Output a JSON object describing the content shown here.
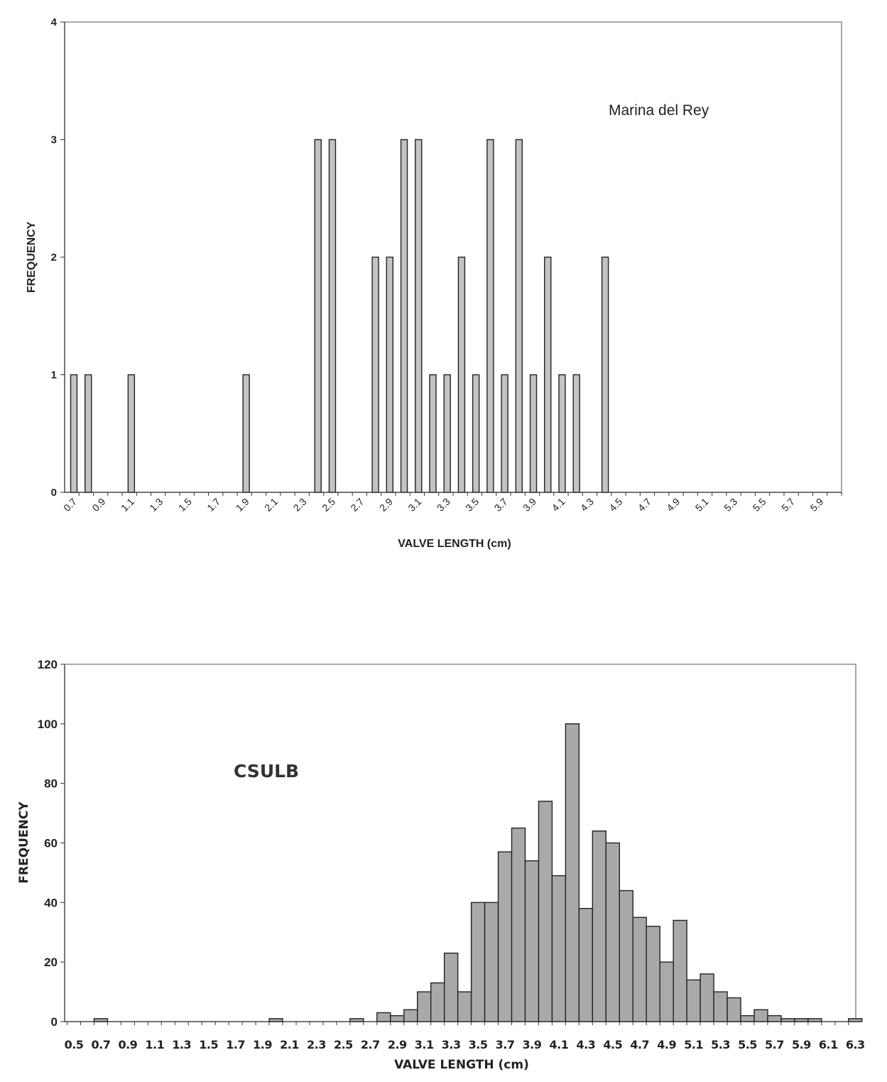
{
  "chart_data": [
    {
      "type": "bar",
      "title": "",
      "annotation": "Marina del Rey",
      "xlabel": "VALVE LENGTH (cm)",
      "ylabel": "FREQUENCY",
      "ylim": [
        0,
        4
      ],
      "yticks": [
        "0",
        "1",
        "2",
        "3",
        "4"
      ],
      "xticks": [
        "0.7",
        "0.9",
        "1.1",
        "1.3",
        "1.5",
        "1.7",
        "1.9",
        "2.1",
        "2.3",
        "2.5",
        "2.7",
        "2.9",
        "3.1",
        "3.3",
        "3.5",
        "3.7",
        "3.9",
        "4.1",
        "4.3",
        "4.5",
        "4.7",
        "4.9",
        "5.1",
        "5.3",
        "5.5",
        "5.7",
        "5.9"
      ],
      "x": [
        0.7,
        0.8,
        1.1,
        1.9,
        2.4,
        2.5,
        2.8,
        2.9,
        3.0,
        3.1,
        3.2,
        3.3,
        3.4,
        3.5,
        3.6,
        3.7,
        3.8,
        3.9,
        4.0,
        4.1,
        4.2,
        4.4
      ],
      "values": [
        1,
        1,
        1,
        1,
        3,
        3,
        2,
        2,
        3,
        3,
        1,
        1,
        2,
        1,
        3,
        1,
        3,
        1,
        2,
        1,
        1,
        2
      ],
      "grid": false,
      "legend": "none"
    },
    {
      "type": "bar",
      "title": "",
      "annotation": "CSULB",
      "xlabel": "VALVE LENGTH (cm)",
      "ylabel": "FREQUENCY",
      "ylim": [
        0,
        120
      ],
      "yticks": [
        "0",
        "20",
        "40",
        "60",
        "80",
        "100",
        "120"
      ],
      "xticks": [
        "0.5",
        "0.7",
        "0.9",
        "1.1",
        "1.3",
        "1.5",
        "1.7",
        "1.9",
        "2.1",
        "2.3",
        "2.5",
        "2.7",
        "2.9",
        "3.1",
        "3.3",
        "3.5",
        "3.7",
        "3.9",
        "4.1",
        "4.3",
        "4.5",
        "4.7",
        "4.9",
        "5.1",
        "5.3",
        "5.5",
        "5.7",
        "5.9",
        "6.1",
        "6.3"
      ],
      "x": [
        0.7,
        2.0,
        2.6,
        2.8,
        2.9,
        3.0,
        3.1,
        3.2,
        3.3,
        3.4,
        3.5,
        3.6,
        3.7,
        3.8,
        3.9,
        4.0,
        4.1,
        4.2,
        4.3,
        4.4,
        4.5,
        4.6,
        4.7,
        4.8,
        4.9,
        5.0,
        5.1,
        5.2,
        5.3,
        5.4,
        5.5,
        5.6,
        5.7,
        5.8,
        5.9,
        6.0,
        6.3
      ],
      "values": [
        1,
        1,
        1,
        3,
        2,
        4,
        10,
        13,
        23,
        10,
        40,
        40,
        57,
        65,
        54,
        74,
        49,
        100,
        38,
        64,
        60,
        44,
        35,
        32,
        20,
        34,
        14,
        16,
        10,
        8,
        2,
        4,
        2,
        1,
        1,
        1,
        1
      ],
      "grid": false,
      "legend": "none"
    }
  ]
}
